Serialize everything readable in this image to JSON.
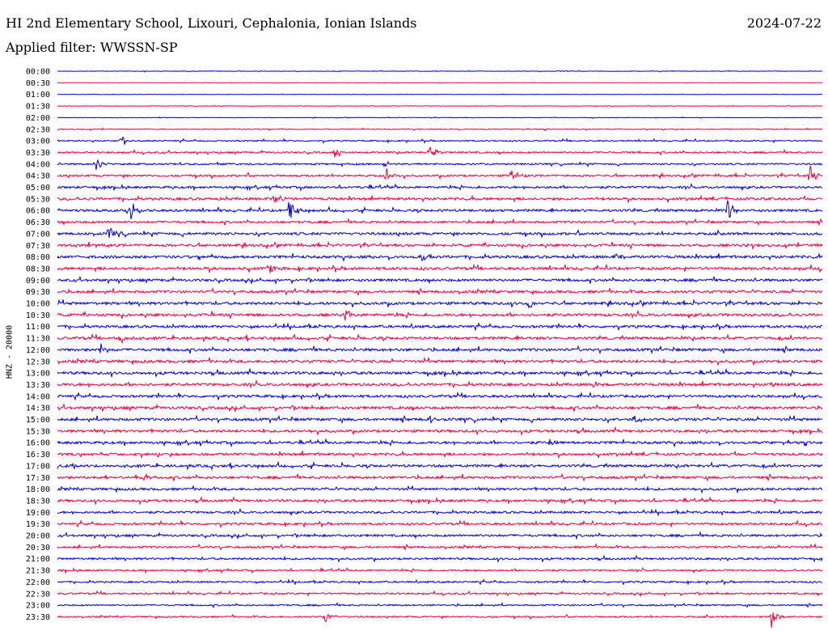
{
  "header": {
    "station": "HI 2nd Elementary School, Lixouri, Cephalonia, Ionian Islands",
    "date": "2024-07-22",
    "filter": "Applied filter: WWSSN-SP"
  },
  "chart_data": {
    "type": "line",
    "title": "HI 2nd Elementary School, Lixouri, Cephalonia, Ionian Islands",
    "ylabel": "HNZ - 20000",
    "row_labels": [
      "00:00",
      "00:30",
      "01:00",
      "01:30",
      "02:00",
      "02:30",
      "03:00",
      "03:30",
      "04:00",
      "04:30",
      "05:00",
      "05:30",
      "06:00",
      "06:30",
      "07:00",
      "07:30",
      "08:00",
      "08:30",
      "09:00",
      "09:30",
      "10:00",
      "10:30",
      "11:00",
      "11:30",
      "12:00",
      "12:30",
      "13:00",
      "13:30",
      "14:00",
      "14:30",
      "15:00",
      "15:30",
      "16:00",
      "16:30",
      "17:00",
      "17:30",
      "18:00",
      "18:30",
      "19:00",
      "19:30",
      "20:00",
      "20:30",
      "21:00",
      "21:30",
      "22:00",
      "22:30",
      "23:00",
      "23:30"
    ],
    "series_colors": [
      "#0000cc",
      "#e8003c"
    ],
    "x_range_minutes": [
      0,
      30
    ],
    "noise_levels": [
      0.3,
      0.2,
      0.2,
      0.3,
      0.3,
      0.5,
      0.8,
      1.0,
      1.0,
      1.2,
      1.3,
      1.5,
      1.4,
      1.3,
      1.5,
      1.5,
      1.6,
      1.6,
      1.5,
      1.5,
      1.6,
      1.6,
      1.5,
      1.6,
      1.6,
      1.6,
      1.6,
      1.6,
      1.5,
      1.6,
      1.6,
      1.5,
      1.5,
      1.5,
      1.5,
      1.5,
      1.4,
      1.4,
      1.3,
      1.3,
      1.3,
      1.2,
      1.2,
      1.0,
      1.0,
      1.0,
      0.9,
      0.9
    ],
    "events": [
      {
        "row": 6,
        "minute": 2.5,
        "amplitude": 8
      },
      {
        "row": 7,
        "minute": 10.9,
        "amplitude": 8
      },
      {
        "row": 7,
        "minute": 14.6,
        "amplitude": 11
      },
      {
        "row": 8,
        "minute": 1.5,
        "amplitude": 9
      },
      {
        "row": 9,
        "minute": 12.9,
        "amplitude": 9
      },
      {
        "row": 9,
        "minute": 17.8,
        "amplitude": 11
      },
      {
        "row": 9,
        "minute": 29.5,
        "amplitude": 13
      },
      {
        "row": 11,
        "minute": 8.5,
        "amplitude": 12
      },
      {
        "row": 12,
        "minute": 2.9,
        "amplitude": 14
      },
      {
        "row": 12,
        "minute": 9.1,
        "amplitude": 14
      },
      {
        "row": 12,
        "minute": 26.3,
        "amplitude": 14
      },
      {
        "row": 14,
        "minute": 2.0,
        "amplitude": 10
      },
      {
        "row": 16,
        "minute": 14.3,
        "amplitude": 9
      },
      {
        "row": 16,
        "minute": 21.9,
        "amplitude": 6
      },
      {
        "row": 17,
        "minute": 8.3,
        "amplitude": 7
      },
      {
        "row": 20,
        "minute": 18.5,
        "amplitude": 10
      },
      {
        "row": 21,
        "minute": 11.3,
        "amplitude": 8
      },
      {
        "row": 23,
        "minute": 2.5,
        "amplitude": 8
      },
      {
        "row": 24,
        "minute": 1.7,
        "amplitude": 8
      },
      {
        "row": 27,
        "minute": 21.0,
        "amplitude": 6
      },
      {
        "row": 27,
        "minute": 28.0,
        "amplitude": 7
      },
      {
        "row": 30,
        "minute": 14.6,
        "amplitude": 8
      },
      {
        "row": 30,
        "minute": 22.6,
        "amplitude": 8
      },
      {
        "row": 32,
        "minute": 19.3,
        "amplitude": 7
      },
      {
        "row": 35,
        "minute": 3.4,
        "amplitude": 5
      },
      {
        "row": 47,
        "minute": 10.5,
        "amplitude": 9
      },
      {
        "row": 47,
        "minute": 28.0,
        "amplitude": 14
      }
    ]
  }
}
